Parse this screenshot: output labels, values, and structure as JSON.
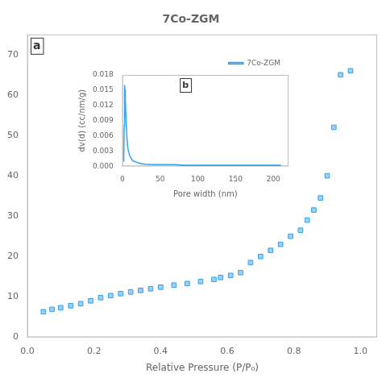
{
  "chart_data": [
    {
      "type": "scatter",
      "title": "7Co-ZGM",
      "annotations": [
        "a"
      ],
      "xlabel": "Relative Pressure (P/P₀)",
      "x": [
        0.048,
        0.074,
        0.1,
        0.13,
        0.16,
        0.19,
        0.22,
        0.25,
        0.28,
        0.31,
        0.34,
        0.37,
        0.4,
        0.44,
        0.48,
        0.52,
        0.56,
        0.58,
        0.61,
        0.64,
        0.67,
        0.7,
        0.73,
        0.76,
        0.79,
        0.82,
        0.84,
        0.86,
        0.88,
        0.9,
        0.92,
        0.94,
        0.97
      ],
      "values": [
        6.3,
        6.9,
        7.3,
        7.8,
        8.3,
        9.0,
        9.8,
        10.3,
        10.8,
        11.2,
        11.6,
        12.0,
        12.4,
        12.9,
        13.3,
        13.8,
        14.3,
        14.8,
        15.3,
        16.0,
        18.5,
        20.0,
        21.5,
        23.0,
        25.0,
        26.5,
        29.0,
        31.5,
        34.5,
        40.0,
        52.0,
        65.0,
        66.0
      ],
      "marker": "square",
      "xlim": [
        0.0,
        1.05
      ],
      "xticks": [
        {
          "value": 0.0,
          "label": "0.0"
        },
        0.2,
        0.4,
        0.6,
        0.8,
        {
          "value": 1.0,
          "label": "1.0"
        }
      ],
      "ylim": [
        0,
        75
      ],
      "yticks": [
        0,
        10,
        20,
        30,
        40,
        50,
        60,
        70
      ],
      "grid": false
    },
    {
      "type": "line",
      "annotations": [
        "b"
      ],
      "xlabel": "Pore width (nm)",
      "ylabel": "dv(d) (cc/nm/g)",
      "x": [
        1.5,
        2.0,
        2.5,
        3.0,
        3.5,
        4.0,
        5.0,
        6.0,
        7.0,
        8.0,
        9.0,
        10.0,
        12.0,
        14.0,
        16.0,
        18.0,
        20.0,
        25.0,
        30.0,
        40.0,
        50.0,
        60.0,
        70.0,
        80.0,
        100.0,
        120.0,
        150.0,
        180.0,
        210.0
      ],
      "series": [
        {
          "name": "7Co-ZGM",
          "values": [
            0.001,
            0.003,
            0.008,
            0.016,
            0.015,
            0.013,
            0.009,
            0.006,
            0.004,
            0.003,
            0.0025,
            0.002,
            0.0015,
            0.001,
            0.001,
            0.0008,
            0.0007,
            0.0005,
            0.0004,
            0.0003,
            0.0003,
            0.0003,
            0.0003,
            0.0002,
            0.0002,
            0.0002,
            0.0002,
            0.0002,
            0.0002
          ]
        }
      ],
      "xlim": [
        0,
        220
      ],
      "xticks": [
        0,
        50,
        100,
        150,
        200
      ],
      "ylim": [
        0.0,
        0.018
      ],
      "yticks": [
        {
          "value": 0.0,
          "label": "0.000"
        },
        0.003,
        0.006,
        0.009,
        0.012,
        0.015,
        0.018
      ],
      "legend": "upper right",
      "grid": false
    }
  ]
}
